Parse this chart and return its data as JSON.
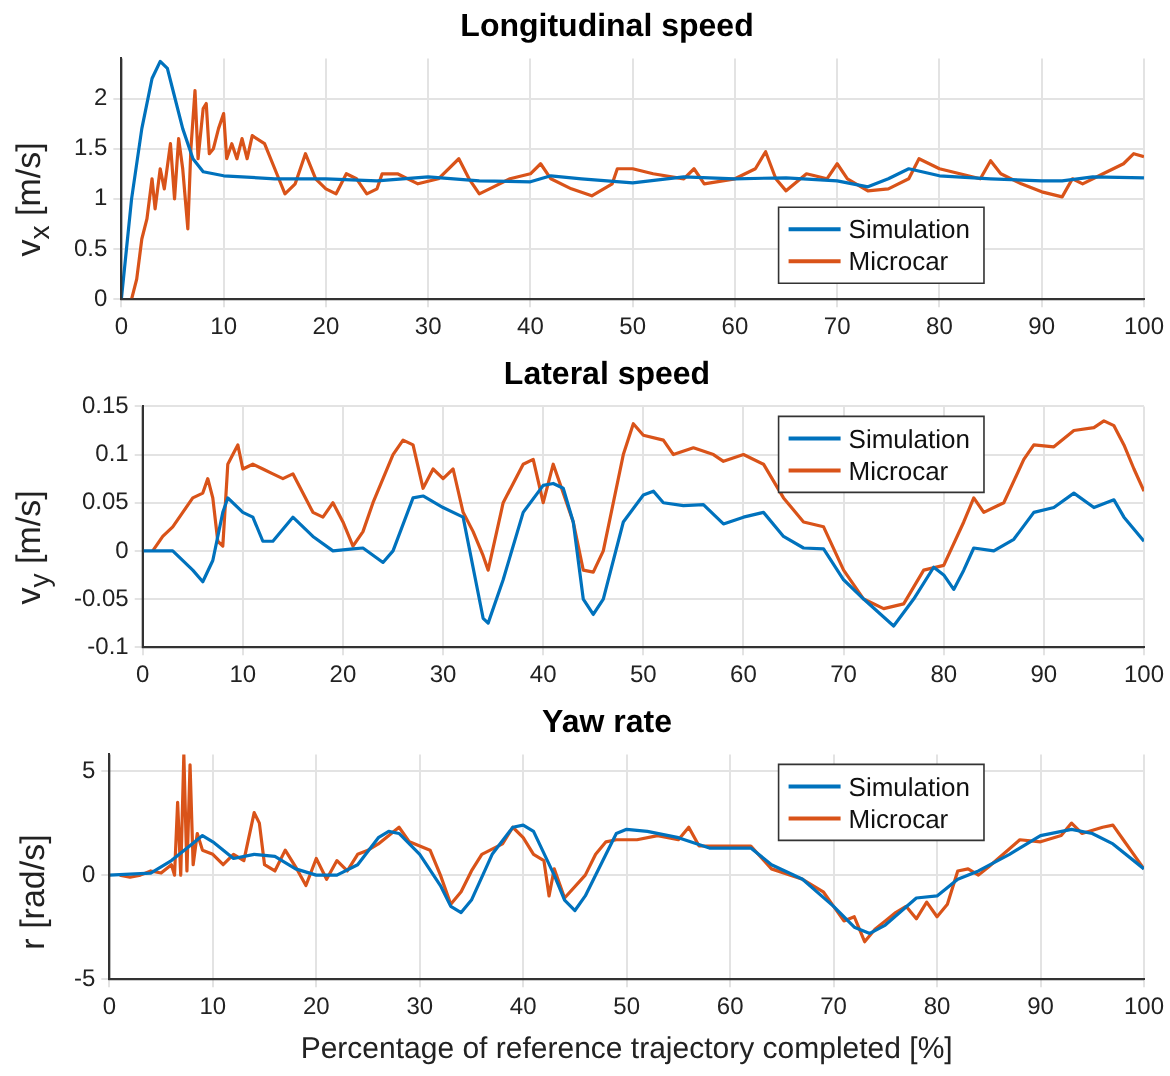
{
  "chart_data": [
    {
      "type": "line",
      "title": "Longitudinal speed",
      "ylabel": "v$_{x}$ [m/s]",
      "xlim": [
        0,
        100
      ],
      "xticks": [
        0,
        10,
        20,
        30,
        40,
        50,
        60,
        70,
        80,
        90,
        100
      ],
      "ylim": [
        0,
        2.4
      ],
      "yticks": [
        0,
        0.5,
        1,
        1.5,
        2
      ],
      "grid": true,
      "legend": "bottom right",
      "series": [
        {
          "name": "Simulation",
          "color": "#0072bd",
          "x": [
            0,
            0.5,
            1,
            2,
            3,
            3.8,
            4.5,
            5,
            6,
            7,
            8,
            10,
            15,
            20,
            25,
            30,
            35,
            40,
            42,
            45,
            50,
            55,
            60,
            65,
            70,
            73,
            75,
            77,
            80,
            85,
            90,
            92,
            95,
            100
          ],
          "values": [
            0,
            0.5,
            1.0,
            1.7,
            2.2,
            2.37,
            2.3,
            2.1,
            1.7,
            1.4,
            1.27,
            1.23,
            1.2,
            1.2,
            1.18,
            1.22,
            1.18,
            1.17,
            1.23,
            1.2,
            1.16,
            1.22,
            1.2,
            1.21,
            1.18,
            1.12,
            1.2,
            1.3,
            1.23,
            1.2,
            1.18,
            1.18,
            1.22,
            1.21
          ]
        },
        {
          "name": "Microcar",
          "color": "#d95319",
          "x": [
            1,
            1.5,
            2,
            2.5,
            3,
            3.3,
            3.8,
            4.2,
            4.8,
            5.2,
            5.6,
            6,
            6.5,
            6.8,
            7.2,
            7.5,
            8,
            8.3,
            8.6,
            9,
            9.5,
            10,
            10.3,
            10.8,
            11.3,
            11.8,
            12.3,
            12.8,
            14,
            15,
            16,
            17,
            18,
            19,
            20,
            21,
            22,
            23,
            24,
            25,
            25.5,
            27,
            29,
            31,
            33,
            34,
            35,
            36,
            38,
            40,
            41,
            42,
            44,
            46,
            48,
            48.5,
            50,
            52,
            55,
            56,
            57,
            60,
            62,
            63,
            64,
            65,
            67,
            69,
            70,
            71,
            73,
            75,
            77,
            78,
            80,
            82,
            84,
            85,
            86,
            88,
            90,
            92,
            93,
            94,
            96,
            98,
            99,
            100
          ],
          "values": [
            0,
            0.2,
            0.6,
            0.8,
            1.2,
            0.9,
            1.3,
            1.1,
            1.55,
            1.0,
            1.6,
            1.3,
            0.7,
            1.5,
            2.08,
            1.4,
            1.9,
            1.95,
            1.45,
            1.5,
            1.7,
            1.85,
            1.4,
            1.55,
            1.4,
            1.6,
            1.4,
            1.63,
            1.55,
            1.3,
            1.05,
            1.15,
            1.45,
            1.2,
            1.1,
            1.05,
            1.25,
            1.2,
            1.05,
            1.1,
            1.25,
            1.25,
            1.15,
            1.2,
            1.4,
            1.2,
            1.05,
            1.1,
            1.2,
            1.25,
            1.35,
            1.2,
            1.1,
            1.03,
            1.15,
            1.3,
            1.3,
            1.25,
            1.2,
            1.3,
            1.15,
            1.2,
            1.3,
            1.47,
            1.2,
            1.08,
            1.25,
            1.2,
            1.35,
            1.2,
            1.08,
            1.1,
            1.2,
            1.4,
            1.3,
            1.25,
            1.2,
            1.38,
            1.25,
            1.15,
            1.07,
            1.02,
            1.2,
            1.15,
            1.25,
            1.35,
            1.45,
            1.42
          ]
        }
      ]
    },
    {
      "type": "line",
      "title": "Lateral speed",
      "ylabel": "v$_{y}$ [m/s]",
      "xlim": [
        0,
        100
      ],
      "xticks": [
        0,
        10,
        20,
        30,
        40,
        50,
        60,
        70,
        80,
        90,
        100
      ],
      "ylim": [
        -0.1,
        0.15
      ],
      "yticks": [
        -0.1,
        -0.05,
        0,
        0.05,
        0.1,
        0.15
      ],
      "grid": true,
      "legend": "top right",
      "series": [
        {
          "name": "Simulation",
          "color": "#0072bd",
          "x": [
            0,
            3,
            5,
            6,
            7,
            8,
            8.5,
            10,
            11,
            12,
            13,
            15,
            17,
            19,
            21,
            22,
            24,
            25,
            27,
            28,
            30,
            32,
            34,
            34.5,
            36,
            38,
            40,
            41,
            42,
            43,
            44,
            45,
            46,
            48,
            50,
            51,
            52,
            54,
            56,
            58,
            60,
            62,
            64,
            66,
            68,
            70,
            72,
            75,
            77,
            79,
            80,
            81,
            82,
            83,
            85,
            87,
            89,
            91,
            93,
            95,
            97,
            98,
            100
          ],
          "values": [
            0,
            0,
            -0.02,
            -0.032,
            -0.01,
            0.04,
            0.055,
            0.04,
            0.035,
            0.01,
            0.01,
            0.035,
            0.015,
            0,
            0.002,
            0.003,
            -0.012,
            0,
            0.055,
            0.057,
            0.045,
            0.035,
            -0.07,
            -0.075,
            -0.03,
            0.04,
            0.068,
            0.07,
            0.065,
            0.03,
            -0.05,
            -0.066,
            -0.05,
            0.03,
            0.058,
            0.062,
            0.05,
            0.047,
            0.048,
            0.028,
            0.035,
            0.04,
            0.015,
            0.003,
            0.002,
            -0.03,
            -0.05,
            -0.078,
            -0.05,
            -0.017,
            -0.025,
            -0.04,
            -0.02,
            0.003,
            0,
            0.012,
            0.04,
            0.045,
            0.06,
            0.045,
            0.053,
            0.035,
            0.01
          ]
        },
        {
          "name": "Microcar",
          "color": "#d95319",
          "x": [
            1,
            2,
            3,
            4,
            5,
            6,
            6.5,
            7,
            7.5,
            8,
            8.5,
            9,
            9.5,
            10,
            11,
            12,
            13,
            14,
            15,
            16,
            17,
            18,
            19,
            20,
            21,
            22,
            23,
            25,
            26,
            27,
            28,
            29,
            30,
            31,
            32,
            33,
            34,
            34.5,
            36,
            38,
            39,
            40,
            41,
            42,
            43,
            44,
            45,
            46,
            48,
            49,
            50,
            52,
            53,
            55,
            57,
            58,
            60,
            62,
            64,
            66,
            68,
            70,
            72,
            74,
            76,
            78,
            80,
            82,
            83,
            84,
            86,
            88,
            89,
            91,
            93,
            95,
            96,
            97,
            98,
            99,
            100
          ],
          "values": [
            0,
            0.015,
            0.025,
            0.04,
            0.055,
            0.06,
            0.075,
            0.055,
            0.01,
            0.005,
            0.09,
            0.1,
            0.11,
            0.085,
            0.09,
            0.085,
            0.08,
            0.075,
            0.08,
            0.06,
            0.04,
            0.035,
            0.05,
            0.03,
            0.005,
            0.02,
            0.05,
            0.1,
            0.115,
            0.11,
            0.065,
            0.085,
            0.075,
            0.085,
            0.04,
            0.02,
            -0.005,
            -0.02,
            0.05,
            0.09,
            0.095,
            0.05,
            0.09,
            0.06,
            0.03,
            -0.02,
            -0.022,
            0,
            0.1,
            0.132,
            0.12,
            0.115,
            0.1,
            0.107,
            0.1,
            0.093,
            0.1,
            0.09,
            0.055,
            0.03,
            0.025,
            -0.02,
            -0.05,
            -0.06,
            -0.055,
            -0.02,
            -0.015,
            0.03,
            0.055,
            0.04,
            0.05,
            0.095,
            0.11,
            0.108,
            0.125,
            0.128,
            0.135,
            0.13,
            0.11,
            0.085,
            0.062
          ]
        }
      ]
    },
    {
      "type": "line",
      "title": "Yaw rate",
      "xlabel": "Percentage of reference trajectory completed [%]",
      "ylabel": "r [rad/s]",
      "xlim": [
        0,
        100
      ],
      "xticks": [
        0,
        10,
        20,
        30,
        40,
        50,
        60,
        70,
        80,
        90,
        100
      ],
      "ylim": [
        -5,
        5.8
      ],
      "yticks": [
        -5,
        0,
        5
      ],
      "grid": true,
      "legend": "top right",
      "series": [
        {
          "name": "Simulation",
          "color": "#0072bd",
          "x": [
            0,
            4,
            6,
            8,
            9,
            10,
            12,
            14,
            16,
            18,
            20,
            22,
            24,
            26,
            27,
            28,
            30,
            32,
            33,
            34,
            35,
            37,
            39,
            40,
            41,
            43,
            44,
            45,
            46,
            48,
            49,
            50,
            52,
            55,
            58,
            62,
            64,
            67,
            70,
            72,
            73.5,
            75,
            78,
            80,
            82,
            84,
            87,
            90,
            93,
            95,
            97,
            100
          ],
          "values": [
            0,
            0.1,
            0.7,
            1.5,
            1.9,
            1.6,
            0.8,
            1.0,
            0.9,
            0.3,
            0,
            0,
            0.5,
            1.8,
            2.1,
            2.0,
            1.0,
            -0.5,
            -1.5,
            -1.8,
            -1.2,
            1.0,
            2.3,
            2.4,
            2.1,
            0,
            -1.2,
            -1.7,
            -1.0,
            1.0,
            2.0,
            2.2,
            2.1,
            1.8,
            1.3,
            1.3,
            0.5,
            -0.2,
            -1.5,
            -2.5,
            -2.8,
            -2.4,
            -1.1,
            -1.0,
            -0.2,
            0.2,
            1.0,
            1.9,
            2.2,
            2.0,
            1.5,
            0.3
          ]
        },
        {
          "name": "Microcar",
          "color": "#d95319",
          "x": [
            1,
            2,
            3,
            4,
            5,
            6,
            6.3,
            6.6,
            6.9,
            7.2,
            7.5,
            7.8,
            8.1,
            8.5,
            9,
            10,
            11,
            12,
            13,
            14,
            14.5,
            15,
            16,
            17,
            18,
            19,
            20,
            21,
            22,
            23,
            24,
            25,
            26,
            28,
            29,
            31,
            32,
            33,
            34,
            35,
            36,
            38,
            39,
            40,
            41,
            42,
            42.5,
            43,
            44,
            46,
            47,
            48,
            49,
            51,
            53,
            55,
            56,
            57,
            60,
            62,
            64,
            67,
            69,
            70,
            71,
            72,
            73,
            74,
            75,
            76,
            77,
            78,
            79,
            80,
            81,
            82,
            83,
            84,
            85,
            88,
            90,
            92,
            93,
            94,
            96,
            97,
            98,
            100
          ],
          "values": [
            0,
            -0.1,
            0,
            0.2,
            0.1,
            0.5,
            0,
            3.5,
            0,
            5.8,
            0.2,
            5.3,
            0.5,
            2.0,
            1.2,
            1.0,
            0.5,
            1.0,
            0.7,
            3.0,
            2.5,
            0.5,
            0.2,
            1.2,
            0.4,
            -0.5,
            0.8,
            -0.2,
            0.7,
            0.2,
            1.0,
            1.2,
            1.5,
            2.3,
            1.6,
            1.2,
            0,
            -1.4,
            -0.8,
            0.2,
            1.0,
            1.5,
            2.3,
            1.8,
            1.0,
            0.7,
            -1.0,
            0.3,
            -1.1,
            0,
            1.0,
            1.6,
            1.7,
            1.7,
            1.9,
            1.7,
            2.3,
            1.4,
            1.4,
            1.4,
            0.3,
            -0.2,
            -0.8,
            -1.5,
            -2.2,
            -2.0,
            -3.2,
            -2.6,
            -2.2,
            -1.8,
            -1.5,
            -2.1,
            -1.3,
            -2.0,
            -1.4,
            0.2,
            0.3,
            0,
            0.4,
            1.7,
            1.6,
            1.9,
            2.5,
            2.0,
            2.3,
            2.4,
            1.7,
            0.3
          ]
        }
      ]
    }
  ]
}
